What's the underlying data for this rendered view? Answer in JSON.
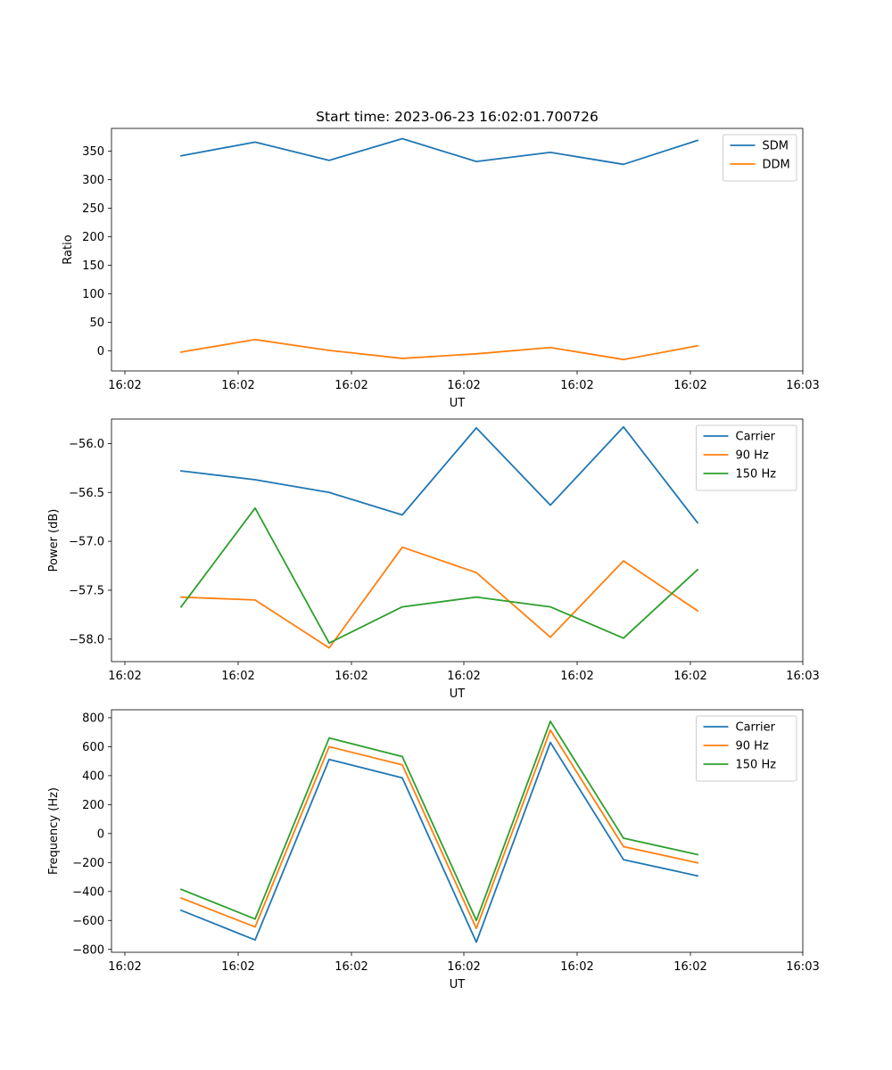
{
  "figure": {
    "title": "Start time: 2023-06-23 16:02:01.700726"
  },
  "colors": {
    "blue": "#1f77b4",
    "orange": "#ff7f0e",
    "green": "#2ca02c"
  },
  "chart_data": [
    {
      "type": "line",
      "title": "Start time: 2023-06-23 16:02:01.700726",
      "xlabel": "UT",
      "ylabel": "Ratio",
      "x_tick_labels": [
        "16:02",
        "16:02",
        "16:02",
        "16:02",
        "16:02",
        "16:02",
        "16:03"
      ],
      "y_ticks": [
        0,
        50,
        100,
        150,
        200,
        250,
        300,
        350
      ],
      "ylim": [
        -35,
        390
      ],
      "legend_position": "upper right",
      "grid": false,
      "series": [
        {
          "name": "SDM",
          "color": "#1f77b4",
          "values": [
            342,
            366,
            334,
            372,
            332,
            348,
            327,
            369
          ]
        },
        {
          "name": "DDM",
          "color": "#ff7f0e",
          "values": [
            -2,
            20,
            1,
            -13,
            -5,
            6,
            -15,
            9
          ]
        }
      ]
    },
    {
      "type": "line",
      "title": "",
      "xlabel": "UT",
      "ylabel": "Power (dB)",
      "x_tick_labels": [
        "16:02",
        "16:02",
        "16:02",
        "16:02",
        "16:02",
        "16:02",
        "16:03"
      ],
      "y_ticks": [
        -58.0,
        -57.5,
        -57.0,
        -56.5,
        -56.0
      ],
      "y_tick_labels": [
        "−58.0",
        "−57.5",
        "−57.0",
        "−56.5",
        "−56.0"
      ],
      "ylim": [
        -58.23,
        -55.75
      ],
      "legend_position": "upper right",
      "grid": false,
      "series": [
        {
          "name": "Carrier",
          "color": "#1f77b4",
          "values": [
            -56.28,
            -56.37,
            -56.5,
            -56.73,
            -55.84,
            -56.63,
            -55.83,
            -56.81
          ]
        },
        {
          "name": "90 Hz",
          "color": "#ff7f0e",
          "values": [
            -57.57,
            -57.6,
            -58.09,
            -57.06,
            -57.32,
            -57.98,
            -57.2,
            -57.71
          ]
        },
        {
          "name": "150 Hz",
          "color": "#2ca02c",
          "values": [
            -57.67,
            -56.66,
            -58.04,
            -57.67,
            -57.57,
            -57.67,
            -57.99,
            -57.29
          ]
        }
      ]
    },
    {
      "type": "line",
      "title": "",
      "xlabel": "UT",
      "ylabel": "Frequency (Hz)",
      "x_tick_labels": [
        "16:02",
        "16:02",
        "16:02",
        "16:02",
        "16:02",
        "16:02",
        "16:03"
      ],
      "y_ticks": [
        -800,
        -600,
        -400,
        -200,
        0,
        200,
        400,
        600,
        800
      ],
      "y_tick_labels": [
        "−800",
        "−600",
        "−400",
        "−200",
        "0",
        "200",
        "400",
        "600",
        "800"
      ],
      "ylim": [
        -820,
        855
      ],
      "legend_position": "upper right",
      "grid": false,
      "series": [
        {
          "name": "Carrier",
          "color": "#1f77b4",
          "values": [
            -530,
            -735,
            512,
            385,
            -750,
            630,
            -180,
            -292
          ]
        },
        {
          "name": "90 Hz",
          "color": "#ff7f0e",
          "values": [
            -445,
            -645,
            600,
            475,
            -655,
            715,
            -90,
            -202
          ]
        },
        {
          "name": "150 Hz",
          "color": "#2ca02c",
          "values": [
            -385,
            -590,
            660,
            532,
            -600,
            775,
            -32,
            -145
          ]
        }
      ]
    }
  ]
}
